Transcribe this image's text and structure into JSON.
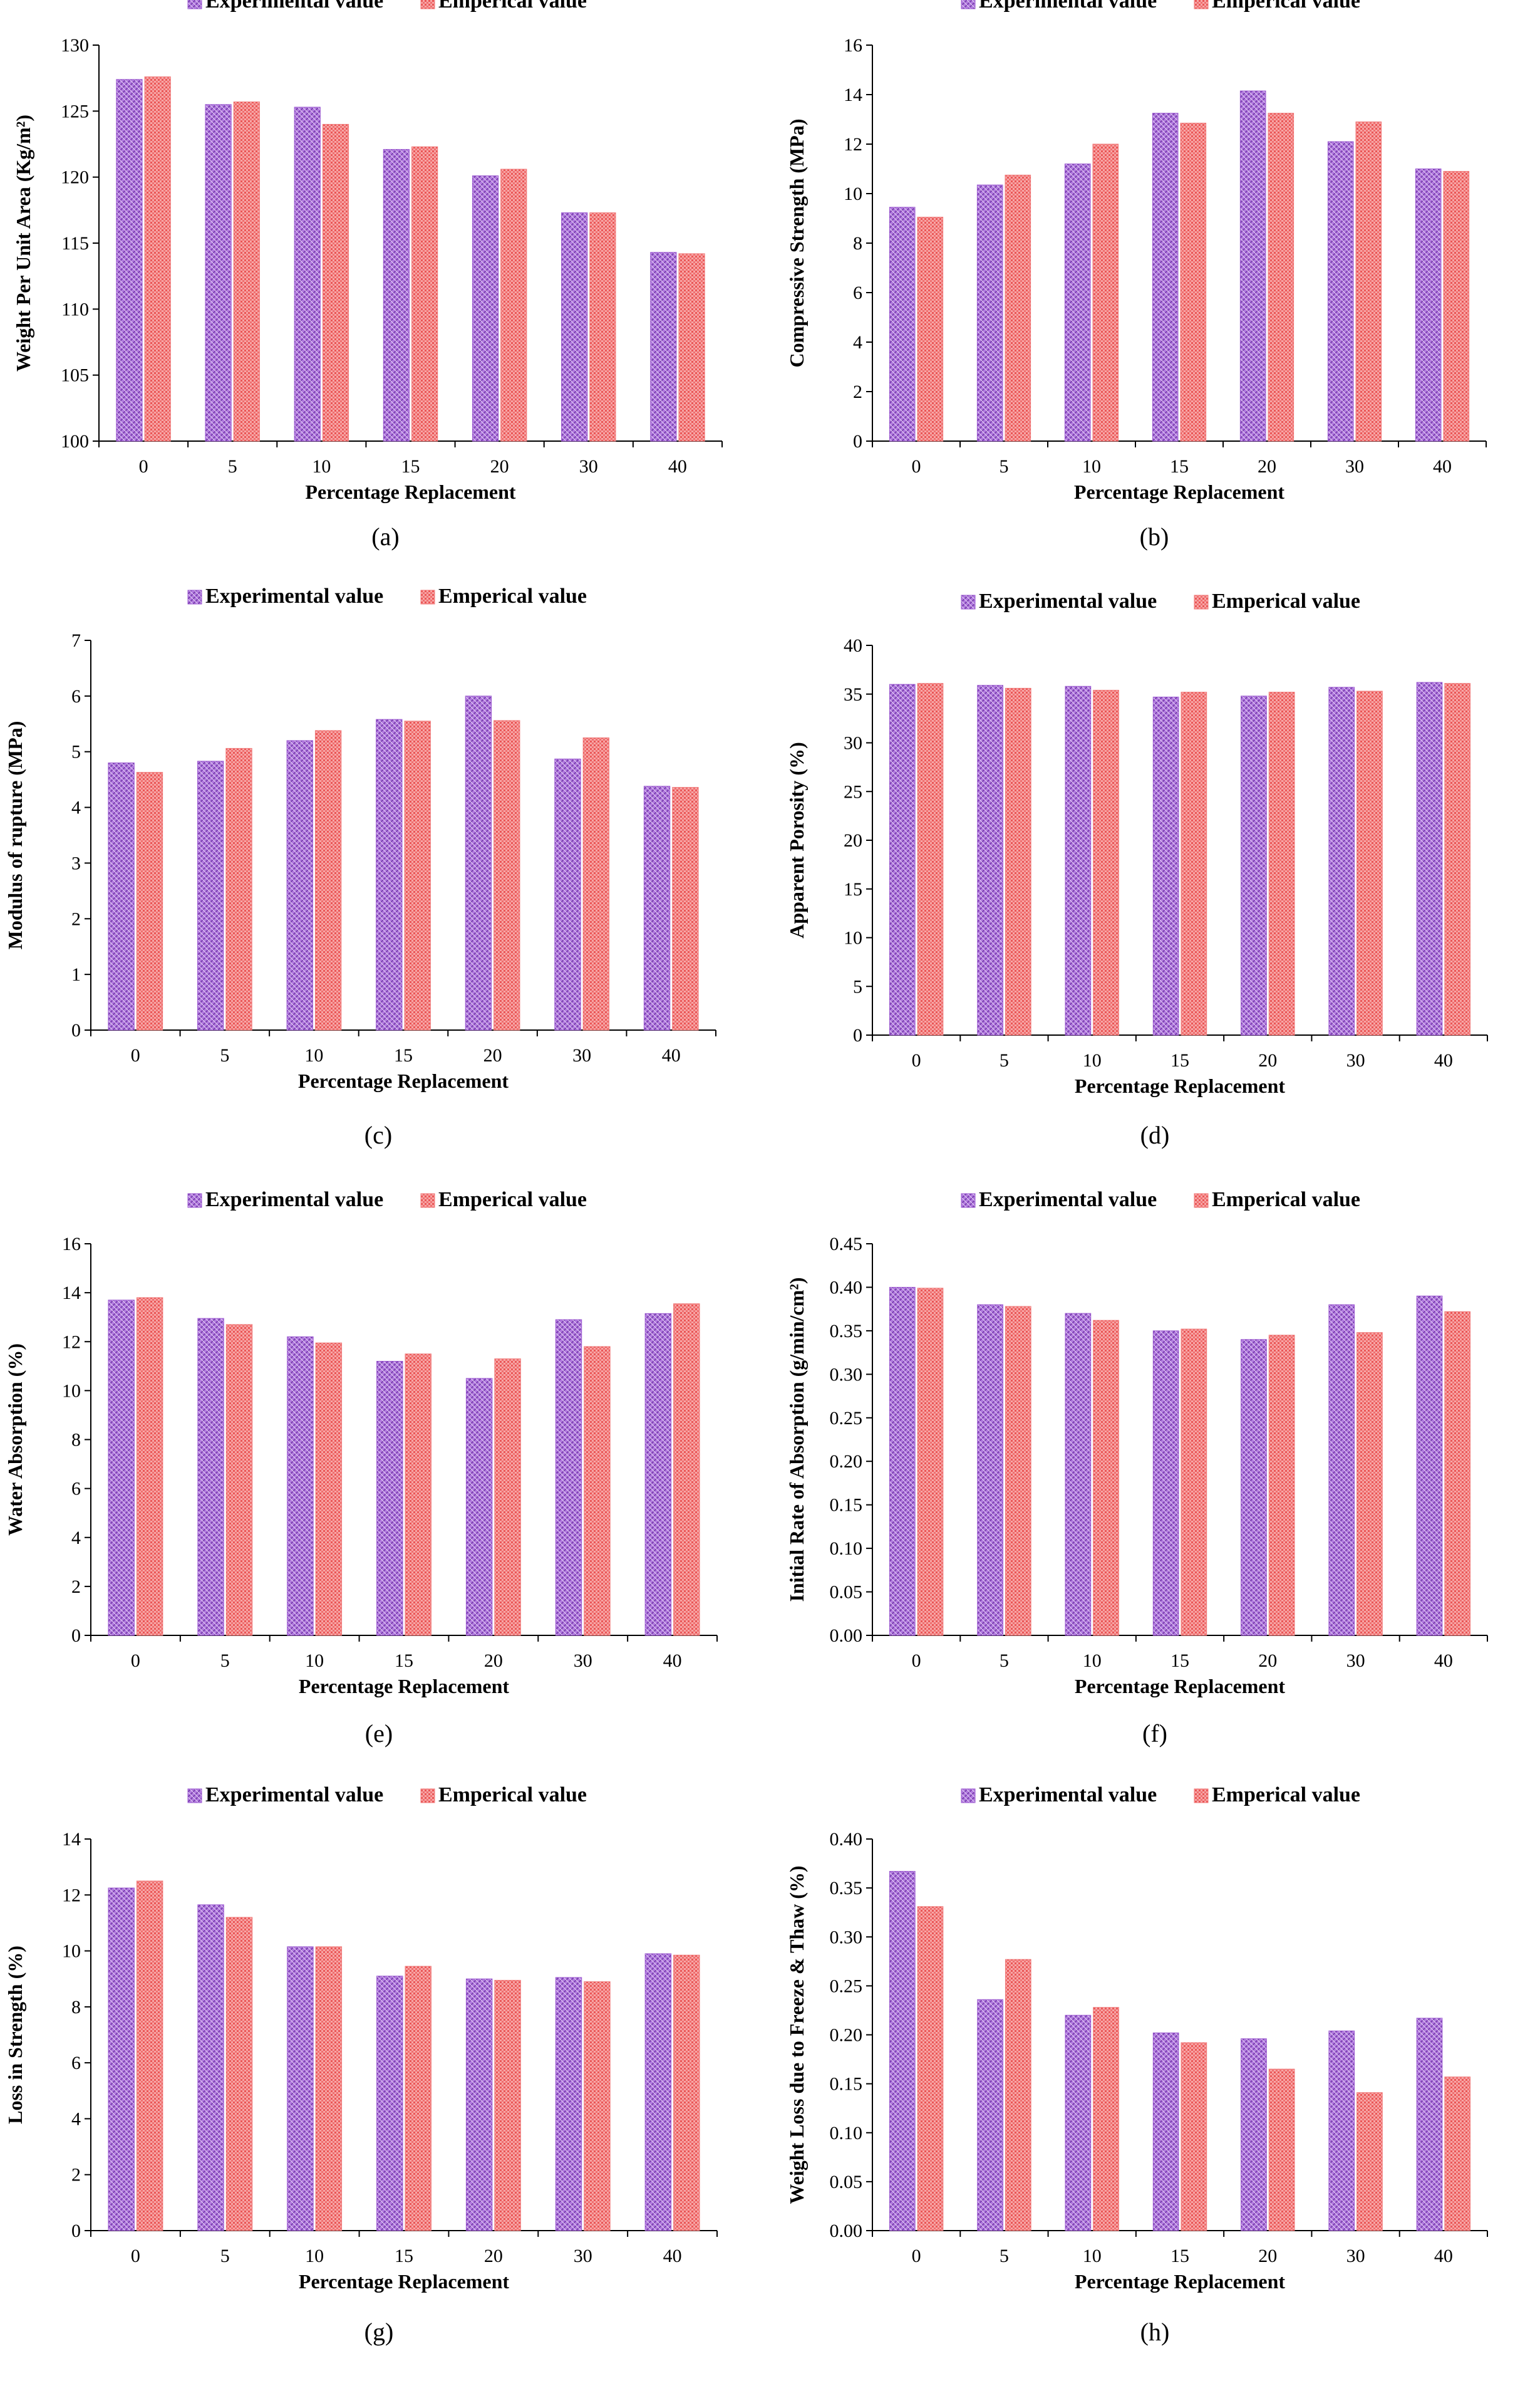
{
  "colors": {
    "experimental": "#9b59d0",
    "emperical": "#f07a7a"
  },
  "chart_data": [
    {
      "type": "bar",
      "caption": "(a)",
      "title": "",
      "legend": [
        "Experimental value",
        "Emperical value"
      ],
      "xlabel": "Percentage  Replacement",
      "ylabel": "Weight Per Unit Area (Kg/m²)",
      "categories": [
        "0",
        "5",
        "10",
        "15",
        "20",
        "30",
        "40"
      ],
      "ylim": [
        100,
        130
      ],
      "ystep": 5,
      "yticks": [
        "100",
        "105",
        "110",
        "115",
        "120",
        "125",
        "130"
      ],
      "series": [
        {
          "name": "Experimental value",
          "values": [
            127.4,
            125.5,
            125.3,
            122.1,
            120.1,
            117.3,
            114.3
          ]
        },
        {
          "name": "Emperical value",
          "values": [
            127.6,
            125.7,
            124.0,
            122.3,
            120.6,
            117.3,
            114.2
          ]
        }
      ]
    },
    {
      "type": "bar",
      "caption": "(b)",
      "title": "",
      "legend": [
        "Experimental value",
        "Emperical value"
      ],
      "xlabel": "Percentage  Replacement",
      "ylabel": "Compressive Strength (MPa)",
      "categories": [
        "0",
        "5",
        "10",
        "15",
        "20",
        "30",
        "40"
      ],
      "ylim": [
        0,
        16
      ],
      "ystep": 2,
      "yticks": [
        "0",
        "2",
        "4",
        "6",
        "8",
        "10",
        "12",
        "14",
        "16"
      ],
      "series": [
        {
          "name": "Experimental value",
          "values": [
            9.45,
            10.35,
            11.2,
            13.25,
            14.15,
            12.1,
            11.0
          ]
        },
        {
          "name": "Emperical value",
          "values": [
            9.05,
            10.75,
            12.0,
            12.85,
            13.25,
            12.9,
            10.9
          ]
        }
      ]
    },
    {
      "type": "bar",
      "caption": "(c)",
      "title": "",
      "legend": [
        "Experimental value",
        "Emperical value"
      ],
      "xlabel": "Percentage  Replacement",
      "ylabel": "Modulus of rupture (MPa)",
      "categories": [
        "0",
        "5",
        "10",
        "15",
        "20",
        "30",
        "40"
      ],
      "ylim": [
        0,
        7
      ],
      "ystep": 1,
      "yticks": [
        "0",
        "1",
        "2",
        "3",
        "4",
        "5",
        "6",
        "7"
      ],
      "series": [
        {
          "name": "Experimental value",
          "values": [
            4.8,
            4.83,
            5.2,
            5.58,
            6.0,
            4.87,
            4.38
          ]
        },
        {
          "name": "Emperical value",
          "values": [
            4.63,
            5.06,
            5.38,
            5.55,
            5.56,
            5.25,
            4.36
          ]
        }
      ]
    },
    {
      "type": "bar",
      "caption": "(d)",
      "title": "",
      "legend": [
        "Experimental value",
        "Emperical value"
      ],
      "xlabel": "Percentage  Replacement",
      "ylabel": "Apparent Porosity (%)",
      "categories": [
        "0",
        "5",
        "10",
        "15",
        "20",
        "30",
        "40"
      ],
      "ylim": [
        0,
        40
      ],
      "ystep": 5,
      "yticks": [
        "0",
        "5",
        "10",
        "15",
        "20",
        "25",
        "30",
        "35",
        "40"
      ],
      "series": [
        {
          "name": "Experimental value",
          "values": [
            36.0,
            35.9,
            35.8,
            34.7,
            34.8,
            35.7,
            36.2
          ]
        },
        {
          "name": "Emperical value",
          "values": [
            36.1,
            35.6,
            35.4,
            35.2,
            35.2,
            35.3,
            36.1
          ]
        }
      ]
    },
    {
      "type": "bar",
      "caption": "(e)",
      "title": "",
      "legend": [
        "Experimental value",
        "Emperical value"
      ],
      "xlabel": "Percentage  Replacement",
      "ylabel": "Water Absorption (%)",
      "categories": [
        "0",
        "5",
        "10",
        "15",
        "20",
        "30",
        "40"
      ],
      "ylim": [
        0,
        16
      ],
      "ystep": 2,
      "yticks": [
        "0",
        "2",
        "4",
        "6",
        "8",
        "10",
        "12",
        "14",
        "16"
      ],
      "series": [
        {
          "name": "Experimental value",
          "values": [
            13.7,
            12.95,
            12.2,
            11.2,
            10.5,
            12.9,
            13.15
          ]
        },
        {
          "name": "Emperical value",
          "values": [
            13.8,
            12.7,
            11.95,
            11.5,
            11.3,
            11.8,
            13.55
          ]
        }
      ]
    },
    {
      "type": "bar",
      "caption": "(f)",
      "title": "",
      "legend": [
        "Experimental value",
        "Emperical value"
      ],
      "xlabel": "Percentage  Replacement",
      "ylabel": "Initial Rate of Absorption (g/min/cm²)",
      "categories": [
        "0",
        "5",
        "10",
        "15",
        "20",
        "30",
        "40"
      ],
      "ylim": [
        0,
        0.45
      ],
      "ystep": 0.05,
      "yticks": [
        "0.00",
        "0.05",
        "0.10",
        "0.15",
        "0.20",
        "0.25",
        "0.30",
        "0.35",
        "0.40",
        "0.45"
      ],
      "series": [
        {
          "name": "Experimental value",
          "values": [
            0.4,
            0.38,
            0.37,
            0.35,
            0.34,
            0.38,
            0.39
          ]
        },
        {
          "name": "Emperical value",
          "values": [
            0.399,
            0.378,
            0.362,
            0.352,
            0.345,
            0.348,
            0.372
          ]
        }
      ]
    },
    {
      "type": "bar",
      "caption": "(g)",
      "title": "",
      "legend": [
        "Experimental value",
        "Emperical value"
      ],
      "xlabel": "Percentage  Replacement",
      "ylabel": "Loss  in Strength (%)",
      "categories": [
        "0",
        "5",
        "10",
        "15",
        "20",
        "30",
        "40"
      ],
      "ylim": [
        0,
        14
      ],
      "ystep": 2,
      "yticks": [
        "0",
        "2",
        "4",
        "6",
        "8",
        "10",
        "12",
        "14"
      ],
      "series": [
        {
          "name": "Experimental value",
          "values": [
            12.25,
            11.65,
            10.15,
            9.1,
            9.0,
            9.05,
            9.9
          ]
        },
        {
          "name": "Emperical value",
          "values": [
            12.5,
            11.2,
            10.15,
            9.45,
            8.95,
            8.9,
            9.85
          ]
        }
      ]
    },
    {
      "type": "bar",
      "caption": "(h)",
      "title": "",
      "legend": [
        "Experimental value",
        "Emperical value"
      ],
      "xlabel": "Percentage  Replacement",
      "ylabel": "Weight Loss due to Freeze & Thaw (%)",
      "categories": [
        "0",
        "5",
        "10",
        "15",
        "20",
        "30",
        "40"
      ],
      "ylim": [
        0,
        0.4
      ],
      "ystep": 0.05,
      "yticks": [
        "0.00",
        "0.05",
        "0.10",
        "0.15",
        "0.20",
        "0.25",
        "0.30",
        "0.35",
        "0.40"
      ],
      "series": [
        {
          "name": "Experimental value",
          "values": [
            0.367,
            0.236,
            0.22,
            0.202,
            0.196,
            0.204,
            0.217
          ]
        },
        {
          "name": "Emperical value",
          "values": [
            0.331,
            0.277,
            0.228,
            0.192,
            0.165,
            0.141,
            0.157
          ]
        }
      ]
    }
  ]
}
